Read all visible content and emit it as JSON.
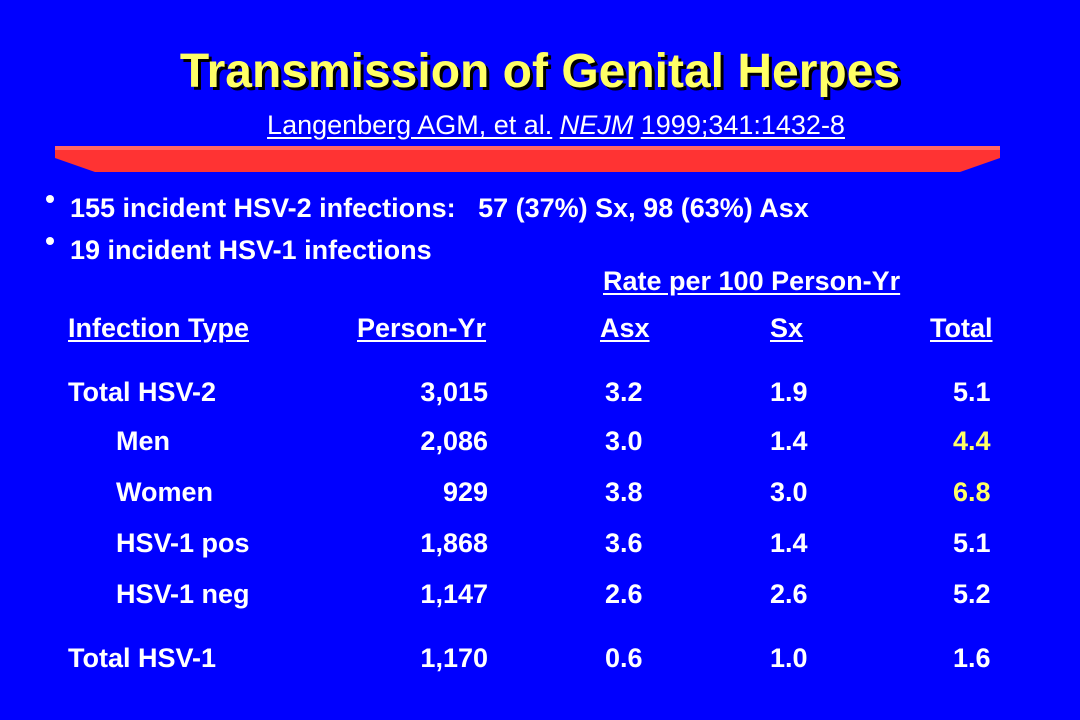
{
  "slide": {
    "title": "Transmission of Genital Herpes",
    "citation_authors": "Langenberg AGM, et al.",
    "citation_journal": "NEJM",
    "citation_ref": "1999;341:1432-8"
  },
  "bullets": [
    "155 incident HSV-2 infections:   57 (37%) Sx, 98 (63%) Asx",
    "19 incident HSV-1 infections"
  ],
  "table": {
    "group_header": "Rate per 100 Person-Yr",
    "columns": [
      "Infection Type",
      "Person-Yr",
      "Asx",
      "Sx",
      "Total"
    ],
    "rows": [
      {
        "type": "Total HSV-2",
        "person_yr": "3,015",
        "asx": "3.2",
        "sx": "1.9",
        "total": "5.1"
      },
      {
        "type": "Men",
        "person_yr": "2,086",
        "asx": "3.0",
        "sx": "1.4",
        "total": "4.4"
      },
      {
        "type": "Women",
        "person_yr": "929",
        "asx": "3.8",
        "sx": "3.0",
        "total": "6.8"
      },
      {
        "type": "HSV-1 pos",
        "person_yr": "1,868",
        "asx": "3.6",
        "sx": "1.4",
        "total": "5.1"
      },
      {
        "type": "HSV-1 neg",
        "person_yr": "1,147",
        "asx": "2.6",
        "sx": "2.6",
        "total": "5.2"
      },
      {
        "type": "Total HSV-1",
        "person_yr": "1,170",
        "asx": "0.6",
        "sx": "1.0",
        "total": "1.6"
      }
    ]
  },
  "colors": {
    "background": "#0000ff",
    "title": "#ffff66",
    "highlight": "#ffff66",
    "divider": "#ff3333",
    "text": "#ffffff"
  }
}
